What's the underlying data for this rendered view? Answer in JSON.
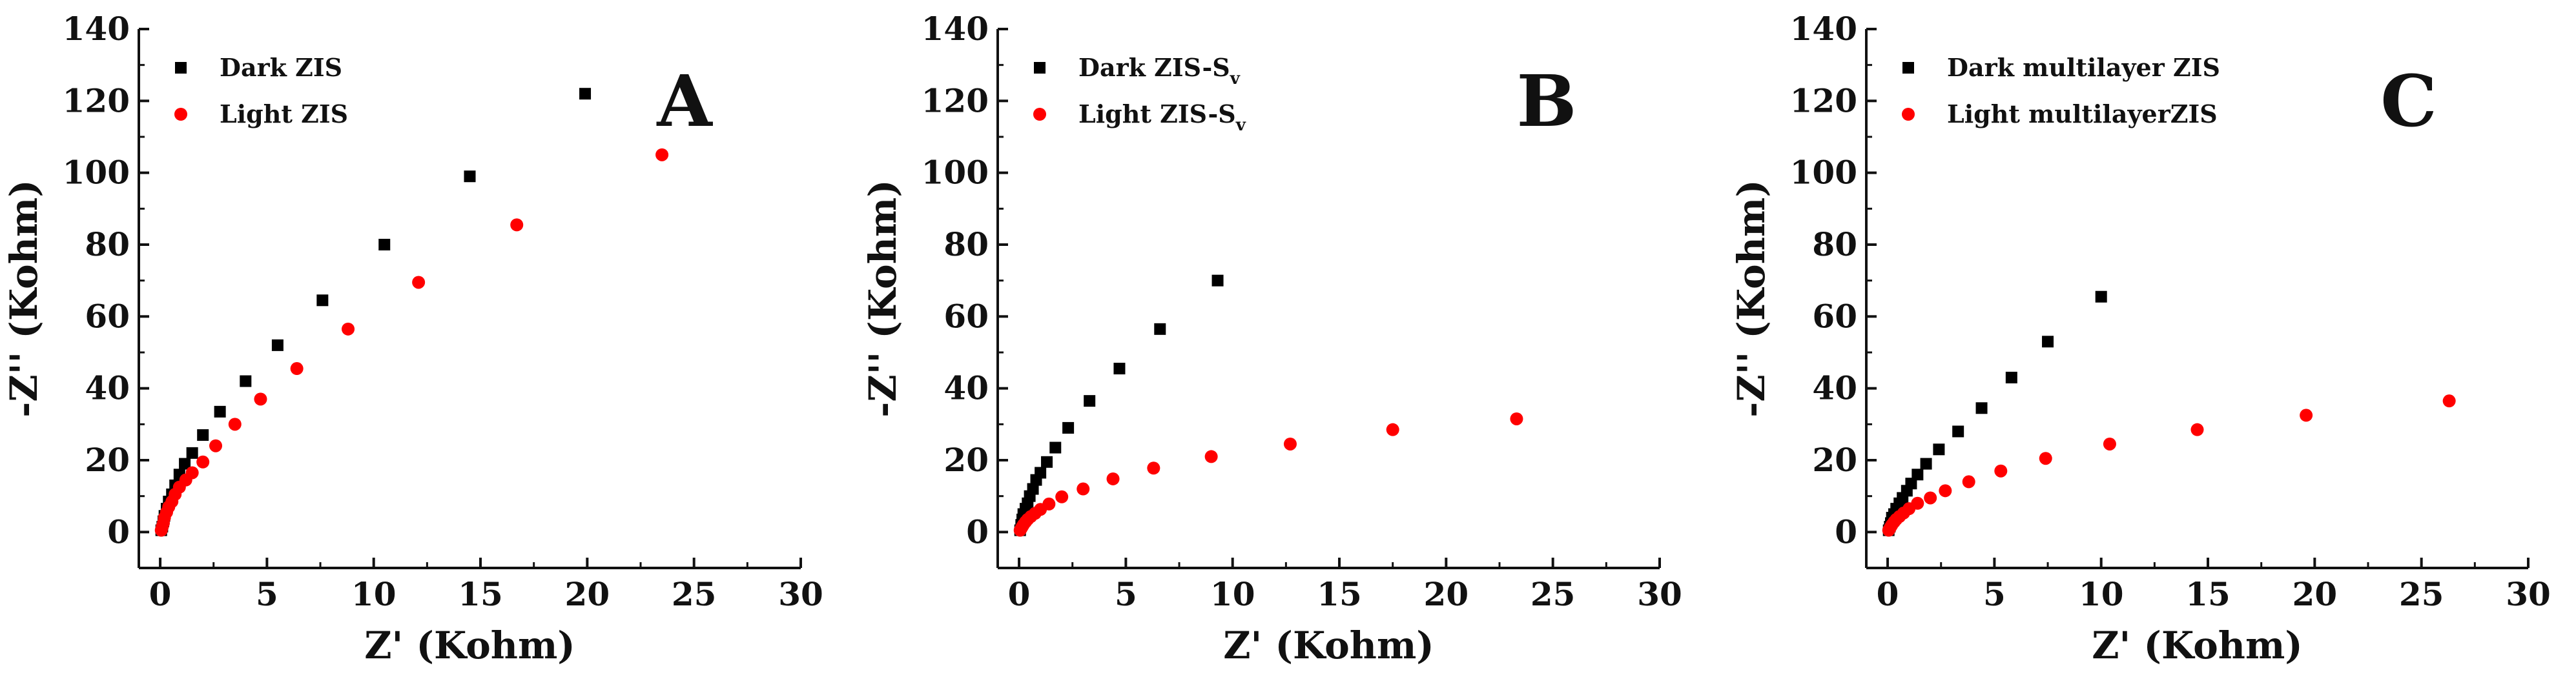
{
  "figure": {
    "panels": [
      "A",
      "B",
      "C"
    ]
  },
  "colors": {
    "dark": "#000000",
    "light": "#ff0000",
    "axis": "#111111"
  },
  "chart_data": [
    {
      "type": "scatter",
      "panel": "A",
      "xlabel": "Z' (Kohm)",
      "ylabel": "-Z'' (Kohm)",
      "xlim": [
        -1,
        30
      ],
      "ylim": [
        -10,
        140
      ],
      "xticks": [
        0,
        5,
        10,
        15,
        20,
        25,
        30
      ],
      "yticks": [
        0,
        20,
        40,
        60,
        80,
        100,
        120,
        140
      ],
      "legend_position": "top-left",
      "series": [
        {
          "name": "Dark ZIS",
          "legend": "Dark ZIS",
          "legend_sub": "",
          "marker": "square",
          "color": "#000000",
          "x": [
            0.05,
            0.1,
            0.15,
            0.2,
            0.3,
            0.4,
            0.55,
            0.7,
            0.9,
            1.15,
            1.5,
            2.0,
            2.8,
            4.0,
            5.5,
            7.6,
            10.5,
            14.5,
            19.9
          ],
          "y": [
            0.5,
            1.5,
            3.0,
            4.5,
            6.5,
            8.5,
            10.5,
            13.0,
            16.0,
            19.0,
            22.0,
            27.0,
            33.5,
            42.0,
            52.0,
            64.5,
            80.0,
            99.0,
            122.0
          ]
        },
        {
          "name": "Light ZIS",
          "legend": "Light ZIS",
          "legend_sub": "",
          "marker": "circle",
          "color": "#ff0000",
          "x": [
            0.05,
            0.1,
            0.15,
            0.2,
            0.3,
            0.4,
            0.55,
            0.7,
            0.9,
            1.2,
            1.5,
            2.0,
            2.6,
            3.5,
            4.7,
            6.4,
            8.8,
            12.1,
            16.7,
            23.5
          ],
          "y": [
            0.5,
            1.5,
            2.5,
            4.0,
            5.5,
            7.0,
            8.5,
            10.5,
            12.5,
            14.5,
            16.5,
            19.5,
            24.0,
            30.0,
            37.0,
            45.5,
            56.5,
            69.5,
            85.5,
            105.0
          ]
        }
      ]
    },
    {
      "type": "scatter",
      "panel": "B",
      "xlabel": "Z' (Kohm)",
      "ylabel": "-Z'' (Kohm)",
      "xlim": [
        -1,
        30
      ],
      "ylim": [
        -10,
        140
      ],
      "xticks": [
        0,
        5,
        10,
        15,
        20,
        25,
        30
      ],
      "yticks": [
        0,
        20,
        40,
        60,
        80,
        100,
        120,
        140
      ],
      "legend_position": "top-left",
      "series": [
        {
          "name": "Dark ZIS-Sv",
          "legend": "Dark ZIS-S",
          "legend_sub": "v",
          "marker": "square",
          "color": "#000000",
          "x": [
            0.05,
            0.1,
            0.15,
            0.2,
            0.3,
            0.4,
            0.5,
            0.65,
            0.8,
            1.0,
            1.3,
            1.7,
            2.3,
            3.3,
            4.7,
            6.6,
            9.3
          ],
          "y": [
            0.5,
            2.0,
            3.5,
            5.0,
            6.5,
            8.0,
            10.0,
            12.0,
            14.5,
            16.5,
            19.5,
            23.5,
            29.0,
            36.5,
            45.5,
            56.5,
            70.0
          ]
        },
        {
          "name": "Light ZIS-Sv",
          "legend": "Light ZIS-S",
          "legend_sub": "v",
          "marker": "circle",
          "color": "#ff0000",
          "x": [
            0.05,
            0.1,
            0.15,
            0.2,
            0.3,
            0.4,
            0.55,
            0.75,
            1.0,
            1.4,
            2.0,
            3.0,
            4.4,
            6.3,
            9.0,
            12.7,
            17.5,
            23.3
          ],
          "y": [
            0.5,
            1.0,
            1.5,
            2.0,
            2.8,
            3.5,
            4.3,
            5.2,
            6.3,
            7.8,
            9.8,
            12.0,
            14.8,
            17.8,
            21.0,
            24.5,
            28.5,
            31.5
          ]
        }
      ]
    },
    {
      "type": "scatter",
      "panel": "C",
      "xlabel": "Z' (Kohm)",
      "ylabel": "-Z'' (Kohm)",
      "xlim": [
        -1,
        30
      ],
      "ylim": [
        -10,
        140
      ],
      "xticks": [
        0,
        5,
        10,
        15,
        20,
        25,
        30
      ],
      "yticks": [
        0,
        20,
        40,
        60,
        80,
        100,
        120,
        140
      ],
      "legend_position": "top-left",
      "series": [
        {
          "name": "Dark multilayer ZIS",
          "legend": "Dark  multilayer ZIS",
          "legend_sub": "",
          "marker": "square",
          "color": "#000000",
          "x": [
            0.05,
            0.1,
            0.15,
            0.2,
            0.3,
            0.4,
            0.55,
            0.7,
            0.9,
            1.1,
            1.4,
            1.8,
            2.4,
            3.3,
            4.4,
            5.8,
            7.5,
            10.0
          ],
          "y": [
            0.5,
            1.5,
            2.5,
            4.0,
            5.0,
            6.5,
            8.0,
            9.5,
            11.5,
            13.5,
            16.0,
            19.0,
            23.0,
            28.0,
            34.5,
            43.0,
            53.0,
            65.5
          ]
        },
        {
          "name": "Light multilayerZIS",
          "legend": "Light  multilayerZIS",
          "legend_sub": "",
          "marker": "circle",
          "color": "#ff0000",
          "x": [
            0.05,
            0.1,
            0.15,
            0.2,
            0.3,
            0.4,
            0.55,
            0.75,
            1.0,
            1.4,
            2.0,
            2.7,
            3.8,
            5.3,
            7.4,
            10.4,
            14.5,
            19.6,
            26.3
          ],
          "y": [
            0.5,
            1.0,
            1.5,
            2.0,
            2.8,
            3.5,
            4.3,
            5.3,
            6.5,
            8.0,
            9.5,
            11.5,
            14.0,
            17.0,
            20.5,
            24.5,
            28.5,
            32.5,
            36.5
          ]
        }
      ]
    }
  ]
}
